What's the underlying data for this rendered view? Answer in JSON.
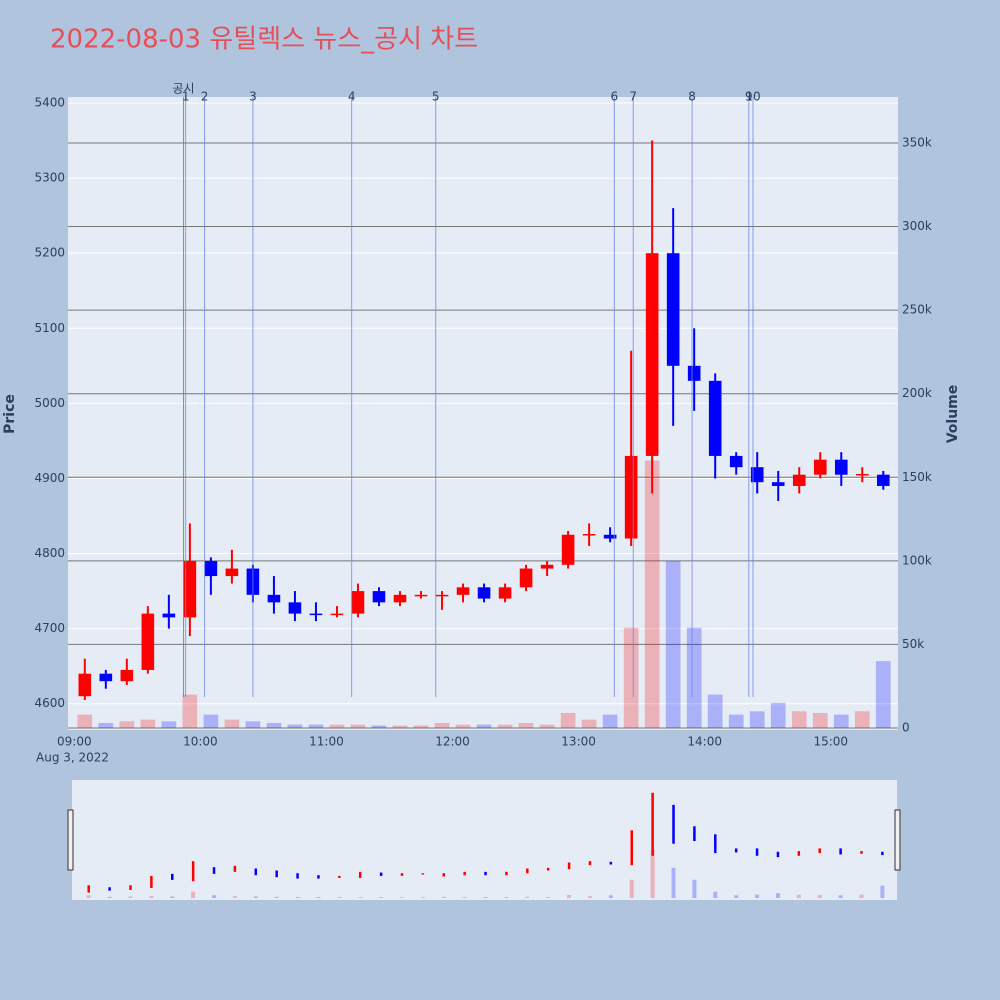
{
  "chart_data": {
    "type": "candlestick",
    "title": "2022-08-03 유틸렉스 뉴스_공시 차트",
    "y_label": "Price",
    "y2_label": "Volume",
    "x_date_label": "Aug 3, 2022",
    "xlim": [
      "08:57",
      "15:32"
    ],
    "xticks": [
      "09:00",
      "10:00",
      "11:00",
      "12:00",
      "13:00",
      "14:00",
      "15:00"
    ],
    "ylim": [
      4565,
      5408
    ],
    "yticks": [
      4600,
      4700,
      4800,
      4900,
      5000,
      5100,
      5200,
      5300,
      5400
    ],
    "y2lim": [
      -1200,
      377500
    ],
    "y2ticks": [
      0,
      {
        "value": 50000,
        "label": "50k"
      },
      {
        "value": 100000,
        "label": "100k"
      },
      {
        "value": 150000,
        "label": "150k"
      },
      {
        "value": 200000,
        "label": "200k"
      },
      {
        "value": 250000,
        "label": "250k"
      },
      {
        "value": 300000,
        "label": "300k"
      },
      {
        "value": 350000,
        "label": "350k"
      }
    ],
    "up_color": "#ff0000",
    "down_color": "#0000ff",
    "x": [
      "09:00",
      "09:10",
      "09:20",
      "09:30",
      "09:40",
      "09:50",
      "10:00",
      "10:10",
      "10:20",
      "10:30",
      "10:40",
      "10:50",
      "11:00",
      "11:10",
      "11:20",
      "11:30",
      "11:40",
      "11:50",
      "12:00",
      "12:10",
      "12:20",
      "12:30",
      "12:40",
      "12:50",
      "13:00",
      "13:10",
      "13:20",
      "13:30",
      "13:40",
      "13:50",
      "14:00",
      "14:10",
      "14:20",
      "14:30",
      "14:40",
      "14:50",
      "15:00",
      "15:10",
      "15:20"
    ],
    "open": [
      4610,
      4640,
      4630,
      4645,
      4720,
      4715,
      4790,
      4770,
      4780,
      4745,
      4735,
      4720,
      4718,
      4720,
      4750,
      4735,
      4745,
      4745,
      4745,
      4755,
      4740,
      4755,
      4780,
      4785,
      4825,
      4825,
      4820,
      4930,
      5200,
      5050,
      5030,
      4930,
      4915,
      4895,
      4890,
      4905,
      4925,
      4905,
      4905
    ],
    "high": [
      4660,
      4645,
      4660,
      4730,
      4745,
      4840,
      4795,
      4805,
      4785,
      4770,
      4750,
      4735,
      4730,
      4760,
      4755,
      4750,
      4750,
      4750,
      4760,
      4760,
      4760,
      4785,
      4790,
      4830,
      4840,
      4835,
      5070,
      5350,
      5260,
      5100,
      5040,
      4935,
      4935,
      4910,
      4915,
      4935,
      4935,
      4915,
      4910
    ],
    "low": [
      4605,
      4620,
      4625,
      4640,
      4700,
      4690,
      4745,
      4760,
      4735,
      4720,
      4710,
      4710,
      4715,
      4715,
      4730,
      4730,
      4740,
      4725,
      4735,
      4735,
      4735,
      4750,
      4770,
      4780,
      4810,
      4815,
      4810,
      4880,
      4970,
      4990,
      4900,
      4905,
      4880,
      4870,
      4880,
      4900,
      4890,
      4895,
      4885
    ],
    "close": [
      4640,
      4630,
      4645,
      4720,
      4715,
      4790,
      4770,
      4780,
      4745,
      4735,
      4720,
      4718,
      4720,
      4750,
      4735,
      4745,
      4745,
      4745,
      4755,
      4740,
      4755,
      4780,
      4785,
      4825,
      4826,
      4820,
      4930,
      5200,
      5050,
      5030,
      4930,
      4915,
      4895,
      4890,
      4905,
      4925,
      4905,
      4906,
      4890
    ],
    "volume": [
      8000,
      3000,
      4000,
      5000,
      4000,
      20000,
      8000,
      5000,
      4000,
      3000,
      2000,
      2000,
      2000,
      2000,
      1500,
      1500,
      1500,
      3000,
      2000,
      2000,
      2000,
      3000,
      2000,
      9000,
      5000,
      8000,
      60000,
      160000,
      100000,
      60000,
      20000,
      8000,
      10000,
      15000,
      10000,
      9000,
      8000,
      10000,
      40000
    ],
    "events": [
      {
        "label": "공시",
        "time": "09:52",
        "color": "#2ca02c"
      },
      {
        "label": "1",
        "time": "09:53"
      },
      {
        "label": "2",
        "time": "10:02"
      },
      {
        "label": "3",
        "time": "10:25"
      },
      {
        "label": "4",
        "time": "11:12"
      },
      {
        "label": "5",
        "time": "11:52"
      },
      {
        "label": "6",
        "time": "13:17"
      },
      {
        "label": "7",
        "time": "13:26"
      },
      {
        "label": "8",
        "time": "13:54"
      },
      {
        "label": "9",
        "time": "14:21"
      },
      {
        "label": "10",
        "time": "14:23"
      }
    ]
  }
}
